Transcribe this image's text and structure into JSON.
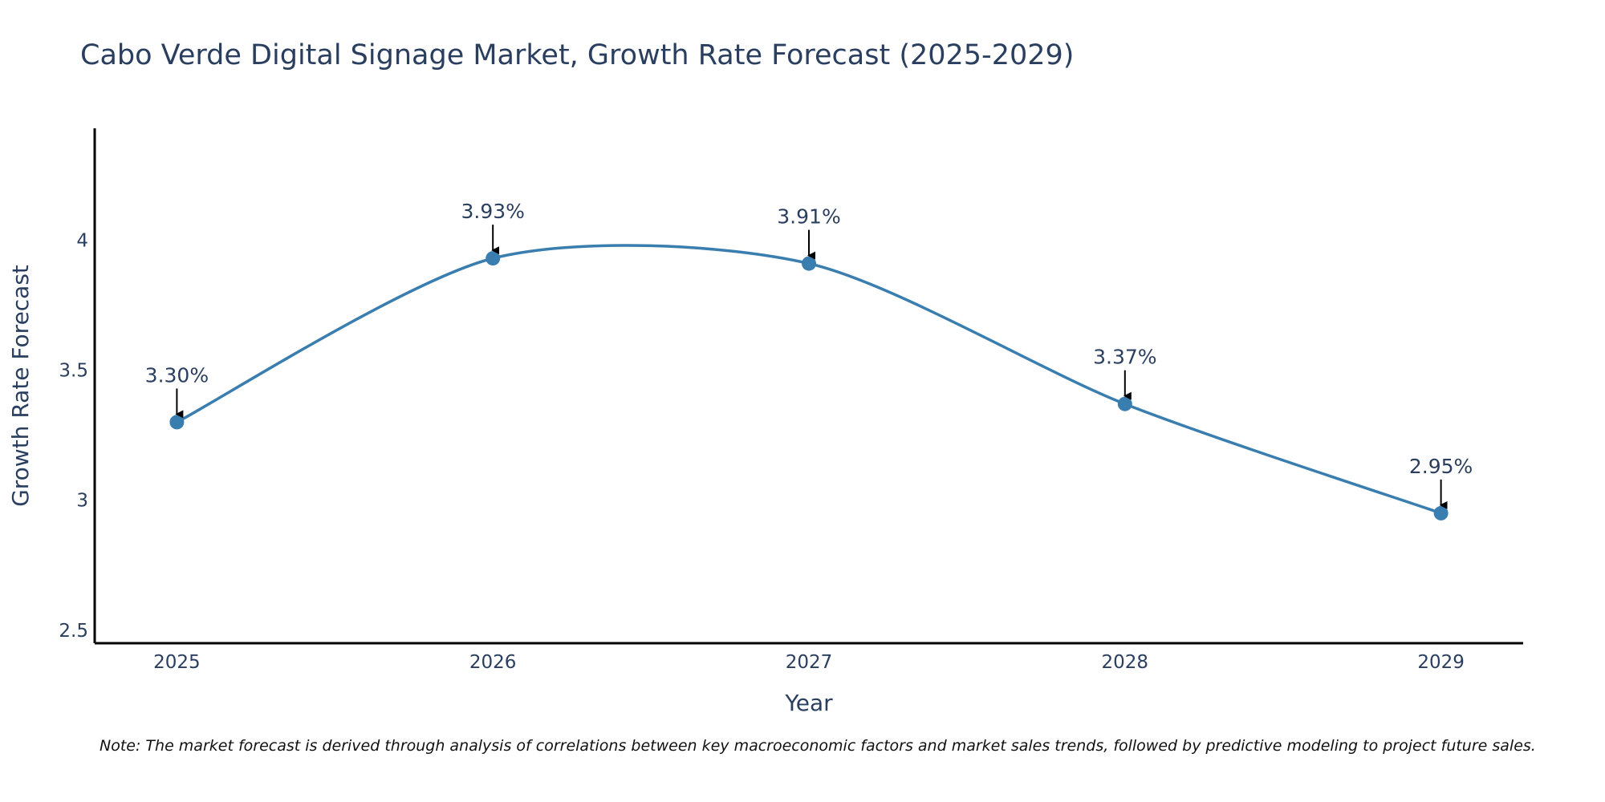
{
  "colors": {
    "line": "#3a7daf",
    "marker": "#3a7daf",
    "axis": "#000000",
    "text": "#2a3f5f",
    "arrow": "#000000"
  },
  "note": "Note: The market forecast is derived through analysis of correlations between key macroeconomic factors and market sales trends, followed by predictive modeling to project future sales.",
  "chart_data": {
    "type": "line",
    "title": "Cabo Verde Digital Signage Market, Growth Rate Forecast (2025-2029)",
    "xlabel": "Year",
    "ylabel": "Growth Rate Forecast",
    "categories": [
      "2025",
      "2026",
      "2027",
      "2028",
      "2029"
    ],
    "values": [
      3.3,
      3.93,
      3.91,
      3.37,
      2.95
    ],
    "data_labels": [
      "3.30%",
      "3.93%",
      "3.91%",
      "3.37%",
      "2.95%"
    ],
    "yticks": [
      2.5,
      3,
      3.5,
      4
    ],
    "ytick_labels": [
      "2.5",
      "3",
      "3.5",
      "4"
    ],
    "ylim": [
      2.45,
      4.43
    ],
    "xlim": [
      -0.26,
      4.26
    ],
    "grid": false,
    "line_shape": "spline"
  }
}
